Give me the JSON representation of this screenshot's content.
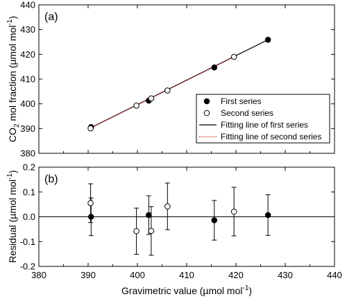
{
  "chart_data": [
    {
      "type": "line",
      "panel_label": "(a)",
      "xlim": [
        380,
        440
      ],
      "ylim": [
        380,
        440
      ],
      "x_ticks": [
        380,
        390,
        400,
        410,
        420,
        430,
        440
      ],
      "y_ticks": [
        380,
        390,
        400,
        410,
        420,
        430,
        440
      ],
      "ylabel": "CO",
      "ylabel_sub": "2",
      "ylabel_rest": " mol fraction  (µmol mol",
      "ylabel_sup": "-1",
      "ylabel_end": ")",
      "legend_position": "bottom-right",
      "series": [
        {
          "name": "First series",
          "marker": "filled-circle",
          "x": [
            390.6,
            402.3,
            415.6,
            426.5
          ],
          "y": [
            390.6,
            401.3,
            414.7,
            425.9
          ]
        },
        {
          "name": "Second series",
          "marker": "open-circle",
          "x": [
            390.5,
            399.8,
            402.8,
            406.1,
            419.6
          ],
          "y": [
            390.1,
            399.3,
            402.2,
            405.4,
            419.0
          ]
        },
        {
          "name": "Fitting line of first series",
          "style": "solid",
          "color": "#000000",
          "x": [
            390.5,
            426.5
          ],
          "y": [
            390.3,
            425.9
          ]
        },
        {
          "name": "Fitting line of second series",
          "style": "dotted",
          "color": "#d21f1f",
          "x": [
            390.5,
            419.6
          ],
          "y": [
            390.2,
            419.0
          ]
        }
      ]
    },
    {
      "type": "scatter",
      "panel_label": "(b)",
      "xlim": [
        380,
        440
      ],
      "ylim": [
        -0.2,
        0.2
      ],
      "x_ticks": [
        380,
        390,
        400,
        410,
        420,
        430,
        440
      ],
      "y_ticks": [
        -0.2,
        -0.1,
        0.0,
        0.1,
        0.2
      ],
      "y_tick_labels": [
        "-0.2",
        "-0.1",
        "0.0",
        "0.1",
        "0.2"
      ],
      "xlabel": "Gravimetric value  (µmol mol",
      "xlabel_sup": "-1",
      "xlabel_end": ")",
      "ylabel": "Residual  (µmol mol",
      "ylabel_sup": "-1",
      "ylabel_end": ")",
      "reference_line_y": 0,
      "series": [
        {
          "name": "First series",
          "marker": "filled-circle",
          "x": [
            390.6,
            402.3,
            415.6,
            426.5
          ],
          "y": [
            0.0,
            0.007,
            -0.014,
            0.007
          ],
          "err": [
            0.076,
            0.078,
            0.08,
            0.082
          ]
        },
        {
          "name": "Second series",
          "marker": "open-circle",
          "x": [
            390.5,
            399.8,
            402.8,
            406.1,
            419.6
          ],
          "y": [
            0.055,
            -0.058,
            -0.057,
            0.042,
            0.021
          ],
          "err": [
            0.078,
            0.093,
            0.098,
            0.094,
            0.098
          ]
        }
      ]
    }
  ]
}
